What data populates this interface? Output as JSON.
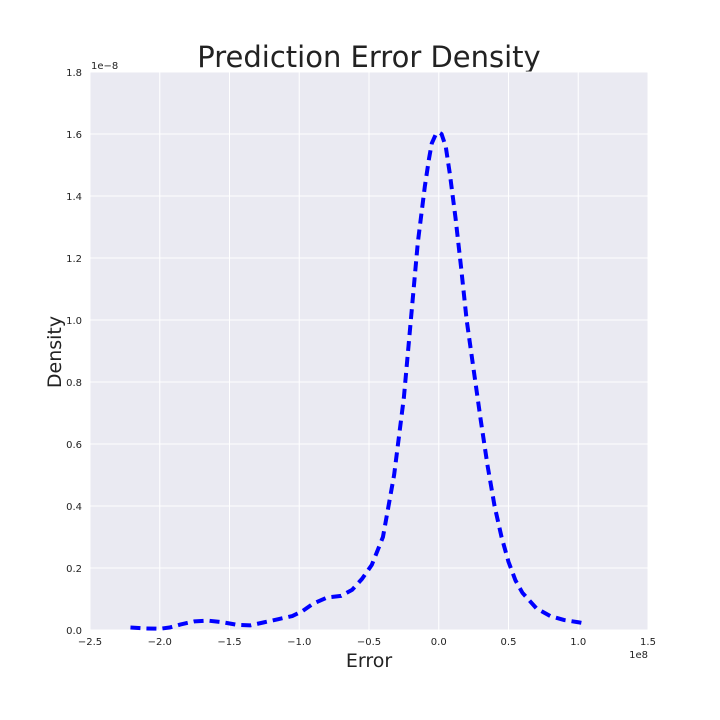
{
  "chart_data": {
    "type": "line",
    "title": "Prediction Error Density",
    "xlabel": "Error",
    "ylabel": "Density",
    "x_offset_label": "1e8",
    "y_offset_label": "1e−8",
    "xlim": [
      -2.5,
      1.5
    ],
    "ylim": [
      0.0,
      1.8
    ],
    "x_ticks": [
      -2.5,
      -2.0,
      -1.5,
      -1.0,
      -0.5,
      0.0,
      0.5,
      1.0,
      1.5
    ],
    "x_tick_labels": [
      "−2.5",
      "−2.0",
      "−1.5",
      "−1.0",
      "−0.5",
      "0.0",
      "0.5",
      "1.0",
      "1.5"
    ],
    "y_ticks": [
      0.0,
      0.2,
      0.4,
      0.6,
      0.8,
      1.0,
      1.2,
      1.4,
      1.6,
      1.8
    ],
    "y_tick_labels": [
      "0.0",
      "0.2",
      "0.4",
      "0.6",
      "0.8",
      "1.0",
      "1.2",
      "1.4",
      "1.6",
      "1.8"
    ],
    "grid": true,
    "line_style": "dashed",
    "series": [
      {
        "color": "#0000ff",
        "x": [
          -2.21,
          -2.1,
          -2.0,
          -1.93,
          -1.85,
          -1.75,
          -1.65,
          -1.55,
          -1.45,
          -1.35,
          -1.25,
          -1.15,
          -1.05,
          -0.98,
          -0.9,
          -0.8,
          -0.7,
          -0.62,
          -0.55,
          -0.48,
          -0.4,
          -0.32,
          -0.25,
          -0.2,
          -0.15,
          -0.1,
          -0.07,
          -0.05,
          -0.02,
          0.0,
          0.02,
          0.05,
          0.08,
          0.12,
          0.16,
          0.2,
          0.25,
          0.3,
          0.35,
          0.4,
          0.45,
          0.5,
          0.55,
          0.6,
          0.7,
          0.8,
          0.9,
          1.0,
          1.06
        ],
        "y": [
          0.008,
          0.005,
          0.004,
          0.008,
          0.018,
          0.028,
          0.03,
          0.025,
          0.017,
          0.015,
          0.025,
          0.035,
          0.045,
          0.06,
          0.085,
          0.105,
          0.11,
          0.13,
          0.165,
          0.21,
          0.3,
          0.5,
          0.75,
          1.0,
          1.25,
          1.43,
          1.52,
          1.57,
          1.6,
          1.605,
          1.6,
          1.56,
          1.47,
          1.33,
          1.17,
          1.0,
          0.84,
          0.68,
          0.53,
          0.4,
          0.3,
          0.22,
          0.16,
          0.12,
          0.07,
          0.045,
          0.032,
          0.025,
          0.02
        ]
      }
    ]
  }
}
